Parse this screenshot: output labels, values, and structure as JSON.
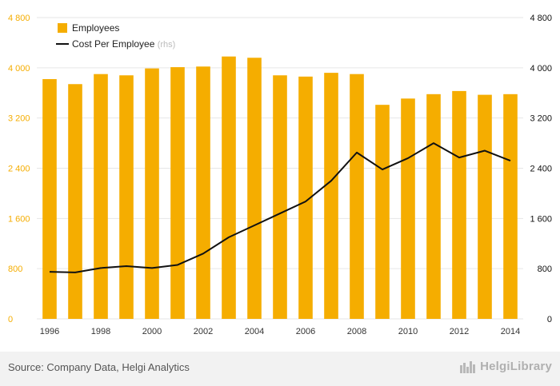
{
  "chart_data": {
    "type": "bar",
    "x": [
      1996,
      1997,
      1998,
      1999,
      2000,
      2001,
      2002,
      2003,
      2004,
      2005,
      2006,
      2007,
      2008,
      2009,
      2010,
      2011,
      2012,
      2013,
      2014
    ],
    "x_tick_labels": [
      "1996",
      "1998",
      "2000",
      "2002",
      "2004",
      "2006",
      "2008",
      "2010",
      "2012",
      "2014"
    ],
    "y_tick_labels": [
      "0",
      "800",
      "1 600",
      "2 400",
      "3 200",
      "4 000",
      "4 800"
    ],
    "ylim": [
      0,
      4800
    ],
    "y2lim": [
      0,
      4800
    ],
    "grid": true,
    "legend_position": "top-left",
    "series": [
      {
        "name": "Employees",
        "type": "bar",
        "axis": "left",
        "color": "#f5ad00",
        "values": [
          3820,
          3740,
          3900,
          3880,
          3990,
          4010,
          4020,
          4180,
          4160,
          3880,
          3860,
          3920,
          3900,
          3410,
          3510,
          3580,
          3630,
          3570,
          3580
        ]
      },
      {
        "name": "Cost Per Employee",
        "name_suffix": "(rhs)",
        "type": "line",
        "axis": "right",
        "color": "#111111",
        "values": [
          750,
          740,
          810,
          840,
          810,
          860,
          1040,
          1300,
          1490,
          1680,
          1870,
          2200,
          2650,
          2380,
          2560,
          2800,
          2570,
          2680,
          2520
        ]
      }
    ],
    "source": "Source: Company Data, Helgi Analytics"
  },
  "brand": {
    "name": "HelgiLibrary",
    "icon": "helgi-skyline-icon"
  },
  "colors": {
    "bar": "#f5ad00",
    "left_axis_text": "#f5ad00",
    "right_axis_text": "#111111",
    "grid": "#e6e6e6",
    "footer_bg": "#f2f2f2"
  }
}
